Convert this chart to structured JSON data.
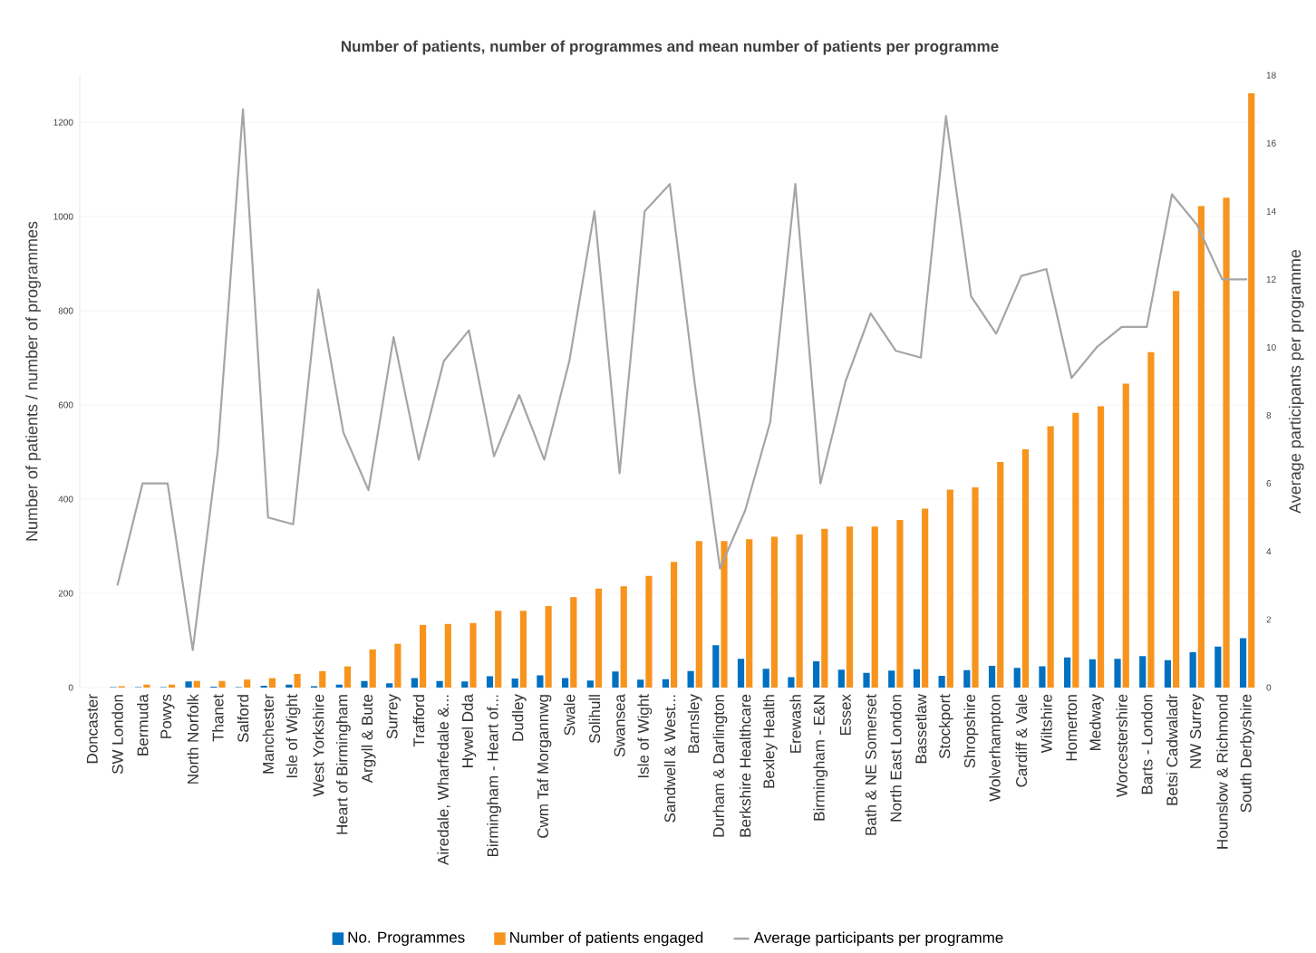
{
  "chart_data": {
    "type": "bar",
    "title": "Number of patients, number of programmes and mean number of patients per programme",
    "ylabel": "Number of patients / number of programmes",
    "y2label": "Average participants per programme",
    "categories": [
      "Doncaster",
      "SW London",
      "Bermuda",
      "Powys",
      "North Norfolk",
      "Thanet",
      "Salford",
      "Manchester",
      "Isle of Wight",
      "West Yorkshire",
      "Heart of Birmingham",
      "Argyll & Bute",
      "Surrey",
      "Trafford",
      "Airedale, Wharfedale &...",
      "Hywel Dda",
      "Birmingham - Heart of...",
      "Dudley",
      "Cwm Taf Morgannwg",
      "Swale",
      "Solihull",
      "Swansea",
      "Isle of Wight",
      "Sandwell & West...",
      "Barnsley",
      "Durham & Darlington",
      "Berkshire Healthcare",
      "Bexley Health",
      "Erewash",
      "Birmingham - E&N",
      "Essex",
      "Bath & NE Somerset",
      "North East London",
      "Bassetlaw",
      "Stockport",
      "Shropshire",
      "Wolverhampton",
      "Cardiff & Vale",
      "Wiltshire",
      "Homerton",
      "Medway",
      "Worcestershire",
      "Barts - London",
      "Betsi Cadwaladr",
      "NW Surrey",
      "Hounslow & Richmond",
      "South Derbyshire"
    ],
    "series": [
      {
        "name": "No. Programmes",
        "color": "#0070c0",
        "values": [
          0,
          1,
          1,
          1,
          13,
          2,
          1,
          4,
          6,
          3,
          6,
          14,
          9,
          20,
          14,
          13,
          24,
          19,
          26,
          20,
          15,
          34,
          17,
          18,
          35,
          90,
          61,
          40,
          22,
          56,
          38,
          31,
          36,
          39,
          25,
          37,
          46,
          42,
          45,
          64,
          60,
          61,
          67,
          58,
          75,
          87,
          105
        ]
      },
      {
        "name": "Number of patients engaged",
        "color": "#f7941d",
        "values": [
          0,
          3,
          6,
          6,
          14,
          14,
          17,
          20,
          29,
          35,
          45,
          81,
          93,
          133,
          135,
          137,
          163,
          163,
          173,
          192,
          210,
          215,
          237,
          267,
          311,
          311,
          315,
          320,
          325,
          337,
          342,
          342,
          356,
          380,
          420,
          425,
          479,
          506,
          555,
          583,
          597,
          645,
          712,
          842,
          1022,
          1040,
          1262
        ]
      },
      {
        "name": "Average participants per programme",
        "type": "line",
        "axis": "y2",
        "color": "#a5a5a5",
        "values": [
          null,
          3,
          6,
          6,
          1.1,
          7,
          17,
          5,
          4.8,
          11.7,
          7.5,
          5.8,
          10.3,
          6.7,
          9.6,
          10.5,
          6.8,
          8.6,
          6.7,
          9.6,
          14,
          6.3,
          14,
          14.8,
          8.9,
          3.5,
          5.2,
          7.8,
          14.8,
          6,
          9,
          11,
          9.9,
          9.7,
          16.8,
          11.5,
          10.4,
          12.1,
          12.3,
          9.1,
          10,
          10.6,
          10.6,
          14.5,
          13.6,
          12,
          12
        ]
      }
    ],
    "ylim": [
      0,
      1300
    ],
    "yticks": [
      0,
      200,
      400,
      600,
      800,
      1000,
      1200
    ],
    "y2lim": [
      0,
      18
    ],
    "y2ticks": [
      0,
      2,
      4,
      6,
      8,
      10,
      12,
      14,
      16,
      18
    ],
    "grid": "y",
    "legend": "bottom"
  }
}
